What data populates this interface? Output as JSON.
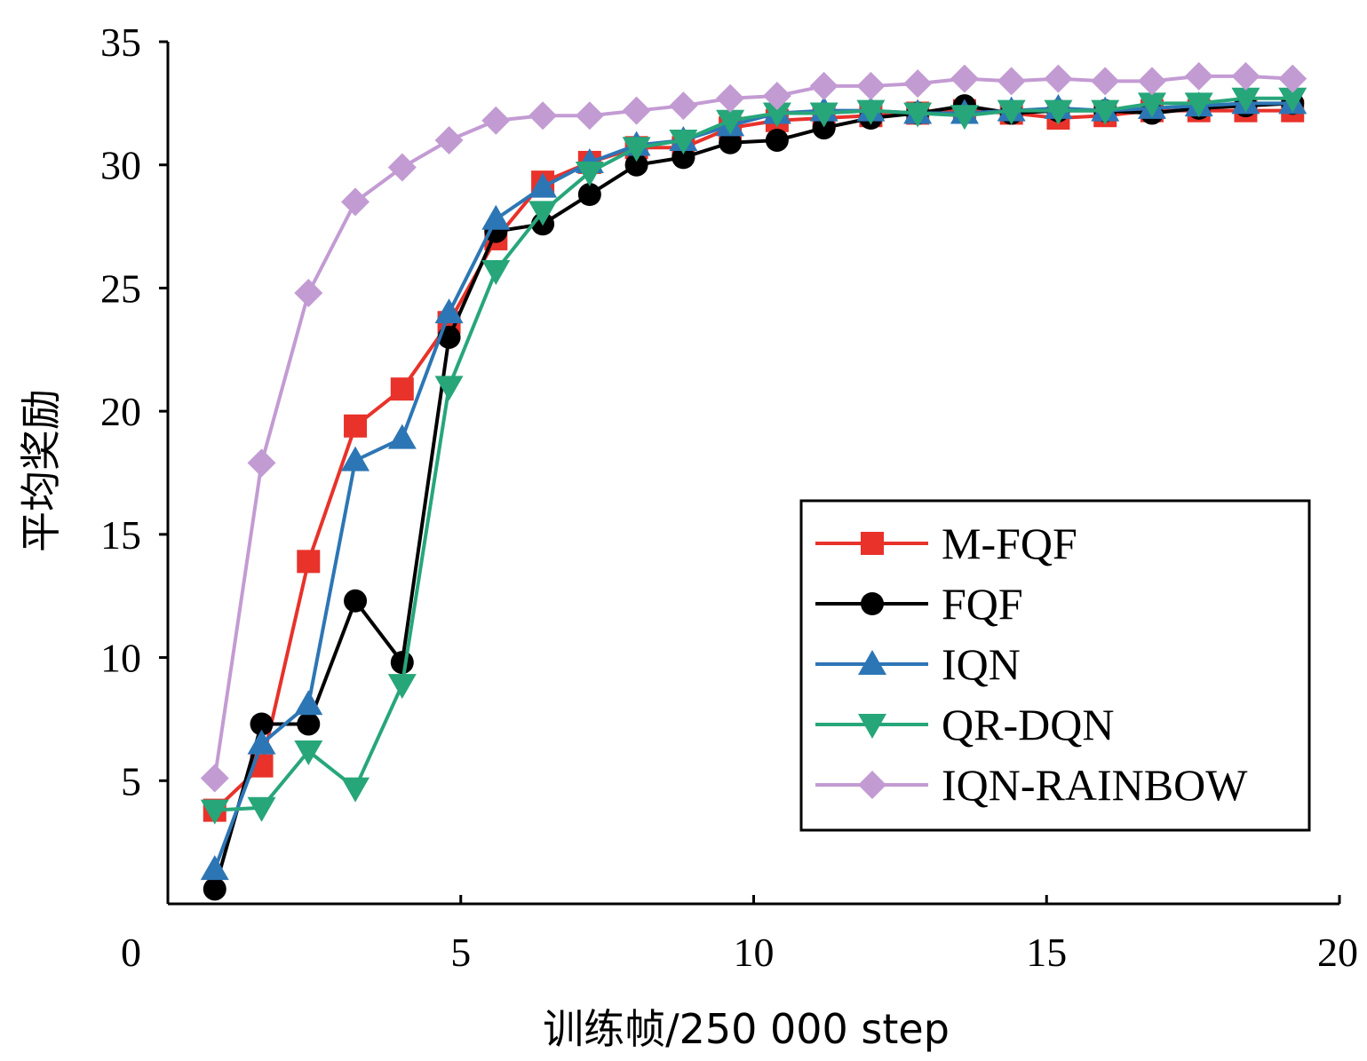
{
  "chart_data": {
    "type": "line",
    "title": "",
    "xlabel": "训练帧/250 000 step",
    "ylabel": "平均奖励",
    "xlim": [
      0,
      20
    ],
    "ylim": [
      0,
      35
    ],
    "x_ticks": [
      "0",
      "5",
      "10",
      "15",
      "20"
    ],
    "y_ticks": [
      "5",
      "10",
      "15",
      "20",
      "25",
      "30",
      "35"
    ],
    "grid": false,
    "legend_position": "lower-right",
    "x": [
      0.8,
      1.6,
      2.4,
      3.2,
      4.0,
      4.8,
      5.6,
      6.4,
      7.2,
      8.0,
      8.8,
      9.6,
      10.4,
      11.2,
      12.0,
      12.8,
      13.6,
      14.4,
      15.2,
      16.0,
      16.8,
      17.6,
      18.4,
      19.2
    ],
    "series": [
      {
        "name": "M-FQF",
        "color": "#e8322a",
        "marker": "square",
        "values": [
          3.8,
          5.6,
          13.9,
          19.4,
          20.9,
          23.6,
          27.0,
          29.3,
          30.1,
          30.7,
          30.7,
          31.5,
          31.8,
          31.9,
          32.0,
          32.1,
          32.2,
          32.1,
          31.9,
          32.0,
          32.2,
          32.2,
          32.2,
          32.2
        ]
      },
      {
        "name": "FQF",
        "color": "#000000",
        "marker": "circle",
        "values": [
          0.6,
          7.3,
          7.3,
          12.3,
          9.8,
          23.0,
          27.3,
          27.6,
          28.8,
          30.0,
          30.3,
          30.9,
          31.0,
          31.5,
          31.9,
          32.1,
          32.4,
          32.1,
          32.2,
          32.2,
          32.1,
          32.3,
          32.4,
          32.5
        ]
      },
      {
        "name": "IQN",
        "color": "#2d76b5",
        "marker": "triangle-up",
        "values": [
          1.4,
          6.5,
          8.1,
          18.0,
          18.9,
          24.0,
          27.8,
          29.1,
          30.1,
          30.8,
          31.0,
          31.6,
          32.1,
          32.2,
          32.2,
          32.1,
          32.1,
          32.2,
          32.3,
          32.2,
          32.3,
          32.4,
          32.5,
          32.5
        ]
      },
      {
        "name": "QR-DQN",
        "color": "#27a67a",
        "marker": "triangle-down",
        "values": [
          3.8,
          3.9,
          6.2,
          4.7,
          8.9,
          21.0,
          25.7,
          28.1,
          29.7,
          30.7,
          31.0,
          31.8,
          32.1,
          32.1,
          32.2,
          32.1,
          32.0,
          32.2,
          32.2,
          32.2,
          32.5,
          32.5,
          32.7,
          32.7
        ]
      },
      {
        "name": "IQN-RAINBOW",
        "color": "#c39bd3",
        "marker": "diamond",
        "values": [
          5.1,
          17.9,
          24.8,
          28.5,
          29.9,
          31.0,
          31.8,
          32.0,
          32.0,
          32.2,
          32.4,
          32.7,
          32.8,
          33.2,
          33.2,
          33.3,
          33.5,
          33.4,
          33.5,
          33.4,
          33.4,
          33.6,
          33.6,
          33.5
        ]
      }
    ]
  }
}
